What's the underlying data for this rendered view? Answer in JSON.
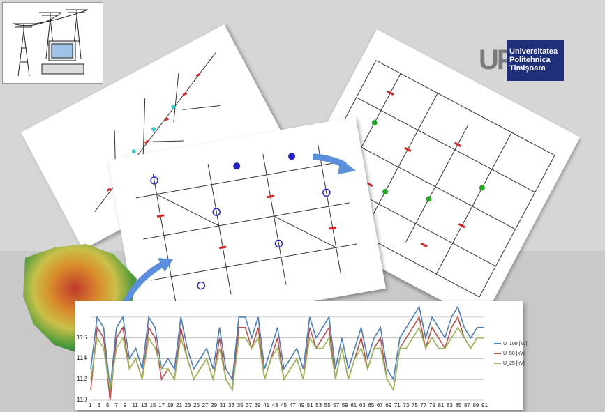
{
  "logo": {
    "mark": "UPT",
    "line1": "Universitatea",
    "line2": "Politehnica",
    "line3": "Timişoara"
  },
  "chart_data": {
    "type": "line",
    "title": "",
    "xlabel": "",
    "ylabel": "",
    "ylim": [
      110,
      119
    ],
    "yticks": [
      "110",
      "112",
      "114",
      "116"
    ],
    "xticks": [
      "1",
      "3",
      "5",
      "7",
      "9",
      "11",
      "13",
      "15",
      "17",
      "19",
      "21",
      "23",
      "25",
      "27",
      "29",
      "31",
      "33",
      "35",
      "37",
      "39",
      "41",
      "43",
      "45",
      "47",
      "49",
      "51",
      "53",
      "55",
      "57",
      "59",
      "61",
      "63",
      "65",
      "67",
      "69",
      "71",
      "73",
      "75",
      "77",
      "79",
      "81",
      "83",
      "85",
      "87",
      "89",
      "91"
    ],
    "legend_position": "right",
    "series": [
      {
        "name": "U_100 [kV]",
        "color": "#4a7ebb",
        "values": [
          113,
          118,
          117,
          111,
          117,
          118,
          114,
          115,
          113,
          118,
          117,
          113,
          114,
          113,
          118,
          115,
          113,
          114,
          115,
          113,
          117,
          113,
          112,
          118,
          118,
          116,
          118,
          113,
          115,
          117,
          113,
          114,
          115,
          113,
          118,
          116,
          117,
          118,
          113,
          116,
          113,
          115,
          117,
          114,
          116,
          117,
          113,
          112,
          116,
          117,
          118,
          119,
          116,
          118,
          117,
          116,
          118,
          119,
          117,
          116,
          117,
          117
        ]
      },
      {
        "name": "U_50 [kV]",
        "color": "#be4b48",
        "values": [
          111,
          117,
          116,
          110,
          116,
          117,
          113,
          114,
          112,
          117,
          116,
          112,
          113,
          112,
          117,
          114,
          112,
          113,
          114,
          112,
          116,
          112,
          111,
          117,
          117,
          115,
          117,
          112,
          114,
          116,
          112,
          113,
          114,
          112,
          117,
          115,
          116,
          117,
          112,
          115,
          112,
          114,
          116,
          113,
          115,
          116,
          112,
          111,
          115,
          116,
          117,
          118,
          115,
          117,
          116,
          115,
          117,
          118,
          116,
          115,
          116,
          116
        ]
      },
      {
        "name": "U_25 [kV]",
        "color": "#98b954",
        "values": [
          112,
          116,
          115,
          111,
          115,
          116,
          113,
          114,
          112,
          116,
          115,
          113,
          113,
          112,
          116,
          114,
          112,
          113,
          114,
          112,
          115,
          112,
          111,
          116,
          116,
          115,
          116,
          112,
          114,
          115,
          112,
          113,
          114,
          112,
          116,
          115,
          115,
          116,
          112,
          115,
          112,
          114,
          115,
          113,
          115,
          115,
          112,
          111,
          115,
          115,
          116,
          117,
          115,
          116,
          115,
          115,
          116,
          117,
          116,
          115,
          116,
          116
        ]
      }
    ]
  }
}
